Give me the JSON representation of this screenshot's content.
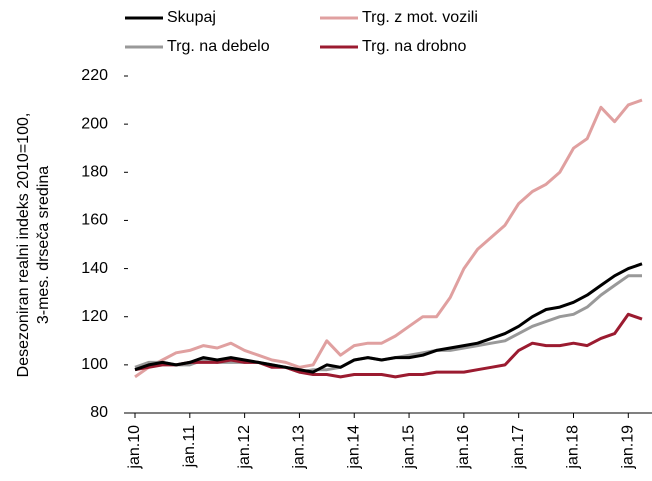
{
  "chart_data": {
    "type": "line",
    "y_label": [
      "Desezoniran realni indeks 2010=100,",
      "3-mes. drseča sredina"
    ],
    "categories": [
      "jan.10",
      null,
      null,
      null,
      "jan.11",
      null,
      null,
      null,
      "jan.12",
      null,
      null,
      null,
      "jan.13",
      null,
      null,
      null,
      "jan.14",
      null,
      null,
      null,
      "jan.15",
      null,
      null,
      null,
      "jan.16",
      null,
      null,
      null,
      "jan.17",
      null,
      null,
      null,
      "jan.18",
      null,
      null,
      null,
      "jan.19",
      null
    ],
    "series": [
      {
        "name": "Skupaj",
        "color": "#000000",
        "values": [
          98,
          100,
          101,
          100,
          101,
          103,
          102,
          103,
          102,
          101,
          100,
          99,
          98,
          97,
          100,
          99,
          102,
          103,
          102,
          103,
          103,
          104,
          106,
          107,
          108,
          109,
          111,
          113,
          116,
          120,
          123,
          124,
          126,
          129,
          133,
          137,
          140,
          142
        ]
      },
      {
        "name": "Trg. z mot. vozili",
        "color": "#e0a0a0",
        "values": [
          95,
          99,
          102,
          105,
          106,
          108,
          107,
          109,
          106,
          104,
          102,
          101,
          99,
          100,
          110,
          104,
          108,
          109,
          109,
          112,
          116,
          120,
          120,
          128,
          140,
          148,
          153,
          158,
          167,
          172,
          175,
          180,
          190,
          194,
          207,
          201,
          208,
          210
        ]
      },
      {
        "name": "Trg. na debelo",
        "color": "#999999",
        "values": [
          99,
          101,
          101,
          100,
          100,
          102,
          101,
          101,
          101,
          101,
          100,
          99,
          97,
          98,
          98,
          99,
          102,
          103,
          102,
          103,
          104,
          105,
          106,
          106,
          107,
          108,
          109,
          110,
          113,
          116,
          118,
          120,
          121,
          124,
          129,
          133,
          137,
          137
        ]
      },
      {
        "name": "Trg. na drobno",
        "color": "#9b1b30",
        "values": [
          98,
          99,
          100,
          100,
          101,
          101,
          101,
          102,
          101,
          101,
          99,
          99,
          97,
          96,
          96,
          95,
          96,
          96,
          96,
          95,
          96,
          96,
          97,
          97,
          97,
          98,
          99,
          100,
          106,
          109,
          108,
          108,
          109,
          108,
          111,
          113,
          121,
          119
        ]
      }
    ],
    "ylim": [
      80,
      220
    ],
    "yticks": [
      80,
      100,
      120,
      140,
      160,
      180,
      200,
      220
    ],
    "grid": false
  }
}
